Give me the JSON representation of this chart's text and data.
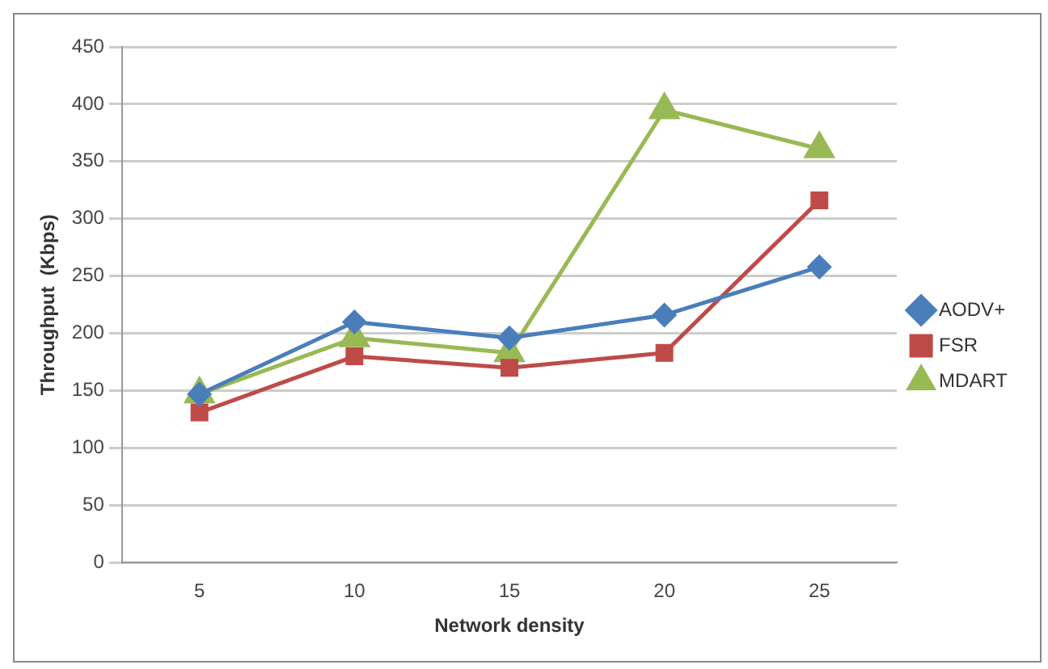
{
  "chart_data": {
    "type": "line",
    "xlabel": "Network density",
    "ylabel": "Throughput  (Kbps)",
    "categories": [
      "5",
      "10",
      "15",
      "20",
      "25"
    ],
    "series": [
      {
        "name": "AODV+",
        "color": "#4a7ebb",
        "marker": "diamond",
        "values": [
          147,
          210,
          196,
          216,
          258
        ]
      },
      {
        "name": "FSR",
        "color": "#be4b48",
        "marker": "square",
        "values": [
          131,
          180,
          170,
          183,
          316
        ]
      },
      {
        "name": "MDART",
        "color": "#98b954",
        "marker": "triangle",
        "values": [
          147,
          196,
          183,
          395,
          361
        ]
      }
    ],
    "ylim": [
      0,
      450
    ],
    "yticks": [
      0,
      50,
      100,
      150,
      200,
      250,
      300,
      350,
      400,
      450
    ],
    "grid": "y",
    "legend": "right"
  }
}
